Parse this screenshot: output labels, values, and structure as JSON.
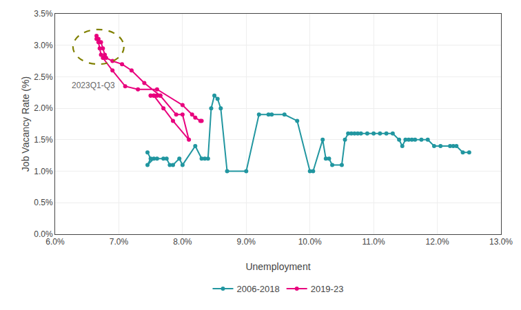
{
  "chart_data": {
    "type": "line",
    "xlabel": "Unemployment",
    "ylabel": "Job Vacancy Rate (%)",
    "xlim": [
      0.06,
      0.13
    ],
    "ylim": [
      0.0,
      0.035
    ],
    "xticks": [
      {
        "value": 0.06,
        "label": "6.0%"
      },
      {
        "value": 0.07,
        "label": "7.0%"
      },
      {
        "value": 0.08,
        "label": "8.0%"
      },
      {
        "value": 0.09,
        "label": "9.0%"
      },
      {
        "value": 0.1,
        "label": "10.0%"
      },
      {
        "value": 0.11,
        "label": "11.0%"
      },
      {
        "value": 0.12,
        "label": "12.0%"
      },
      {
        "value": 0.13,
        "label": "13.0%"
      }
    ],
    "yticks": [
      {
        "value": 0.0,
        "label": "0.0%"
      },
      {
        "value": 0.005,
        "label": "0.5%"
      },
      {
        "value": 0.01,
        "label": "1.0%"
      },
      {
        "value": 0.015,
        "label": "1.5%"
      },
      {
        "value": 0.02,
        "label": "2.0%"
      },
      {
        "value": 0.025,
        "label": "2.5%"
      },
      {
        "value": 0.03,
        "label": "3.0%"
      },
      {
        "value": 0.035,
        "label": "3.5%"
      }
    ],
    "grid": true,
    "legend": "bottom",
    "series": [
      {
        "name": "2006-2018",
        "color": "#2196A0",
        "marker": "circle",
        "line_style": "solid",
        "x": [
          0.0745,
          0.075,
          0.0745,
          0.0755,
          0.076,
          0.077,
          0.0775,
          0.078,
          0.0785,
          0.0795,
          0.08,
          0.082,
          0.083,
          0.0835,
          0.084,
          0.0845,
          0.085,
          0.0855,
          0.086,
          0.087,
          0.09,
          0.092,
          0.0935,
          0.094,
          0.096,
          0.098,
          0.1,
          0.1005,
          0.102,
          0.1025,
          0.103,
          0.1035,
          0.105,
          0.1055,
          0.106,
          0.1065,
          0.107,
          0.1075,
          0.108,
          0.109,
          0.11,
          0.111,
          0.112,
          0.113,
          0.114,
          0.1145,
          0.115,
          0.1155,
          0.116,
          0.1165,
          0.1175,
          0.1185,
          0.1195,
          0.1205,
          0.122,
          0.1225,
          0.123,
          0.124,
          0.125
        ],
        "values": [
          0.013,
          0.012,
          0.011,
          0.012,
          0.012,
          0.012,
          0.012,
          0.011,
          0.011,
          0.012,
          0.011,
          0.014,
          0.012,
          0.012,
          0.012,
          0.02,
          0.022,
          0.0215,
          0.02,
          0.01,
          0.01,
          0.019,
          0.019,
          0.019,
          0.019,
          0.018,
          0.01,
          0.01,
          0.015,
          0.012,
          0.012,
          0.011,
          0.011,
          0.015,
          0.016,
          0.016,
          0.016,
          0.016,
          0.016,
          0.016,
          0.016,
          0.016,
          0.016,
          0.016,
          0.015,
          0.014,
          0.015,
          0.015,
          0.015,
          0.015,
          0.015,
          0.015,
          0.014,
          0.014,
          0.014,
          0.014,
          0.014,
          0.013,
          0.013
        ]
      },
      {
        "name": "2019-23",
        "color": "#E8007D",
        "marker": "circle",
        "line_style": "solid",
        "x": [
          0.0755,
          0.076,
          0.0765,
          0.0765,
          0.079,
          0.08,
          0.081,
          0.0785,
          0.077,
          0.0755,
          0.075,
          0.075,
          0.0755,
          0.076,
          0.0765,
          0.074,
          0.072,
          0.0705,
          0.069,
          0.068,
          0.0678,
          0.0675,
          0.0672,
          0.0668,
          0.0665,
          0.0665,
          0.0668,
          0.067,
          0.0672,
          0.0675,
          0.069,
          0.071,
          0.073,
          0.076,
          0.08,
          0.0815,
          0.082,
          0.0828,
          0.083
        ],
        "values": [
          0.022,
          0.022,
          0.022,
          0.022,
          0.019,
          0.019,
          0.015,
          0.018,
          0.02,
          0.022,
          0.022,
          0.022,
          0.022,
          0.022,
          0.022,
          0.024,
          0.026,
          0.027,
          0.0275,
          0.028,
          0.0285,
          0.0295,
          0.0305,
          0.031,
          0.0315,
          0.031,
          0.0305,
          0.0295,
          0.0285,
          0.028,
          0.026,
          0.0235,
          0.023,
          0.023,
          0.0205,
          0.019,
          0.0185,
          0.018,
          0.018
        ]
      }
    ],
    "ellipse": {
      "cx": 0.0668,
      "cy": 0.02975,
      "rx": 0.004,
      "ry": 0.00275,
      "color": "#808000",
      "line_style": "dashed",
      "label": "2023Q1-Q3"
    }
  }
}
